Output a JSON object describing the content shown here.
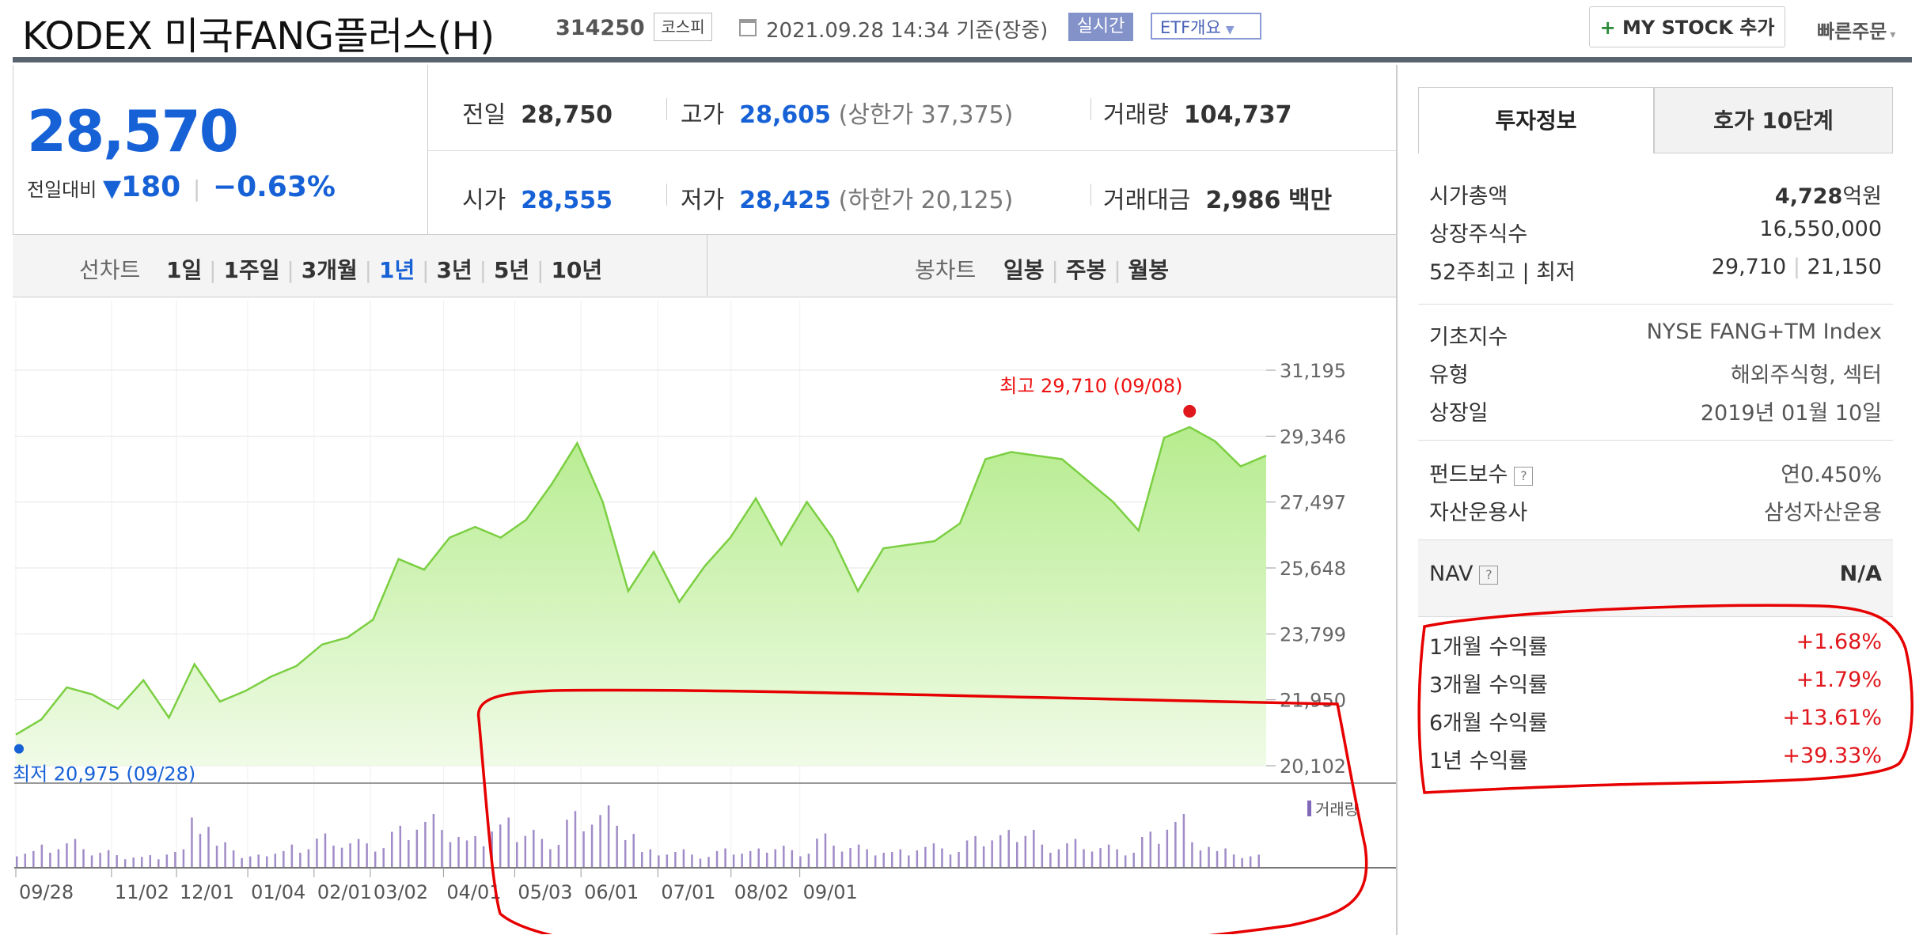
{
  "header": {
    "title": "KODEX 미국FANG플러스(H)",
    "code": "314250",
    "market": "코스피",
    "datetime": "2021.09.28 14:34 기준(장중)",
    "realtime_label": "실시간",
    "etf_label": "ETF개요",
    "mystock_plus": "+",
    "mystock_label": "MY STOCK 추가",
    "quick_order": "빠른주문"
  },
  "price": {
    "current": "28,570",
    "compare_label": "전일대비",
    "change_arrow": "▼",
    "change": "180",
    "change_pct": "−0.63%"
  },
  "stats": {
    "prev_label": "전일",
    "prev": "28,750",
    "high_label": "고가",
    "high": "28,605",
    "upper_limit": "(상한가 37,375)",
    "volume_label": "거래량",
    "volume": "104,737",
    "open_label": "시가",
    "open": "28,555",
    "low_label": "저가",
    "low": "28,425",
    "lower_limit": "(하한가 20,125)",
    "amount_label": "거래대금",
    "amount": "2,986",
    "amount_unit": "백만"
  },
  "chart_controls": {
    "line_label": "선차트",
    "periods": [
      "1일",
      "1주일",
      "3개월",
      "1년",
      "3년",
      "5년",
      "10년"
    ],
    "active_period": "1년",
    "candle_label": "봉차트",
    "candles": [
      "일봉",
      "주봉",
      "월봉"
    ]
  },
  "chart_data": {
    "type": "area",
    "x_ticks": [
      "09/28",
      "11/02",
      "12/01",
      "01/04",
      "02/01",
      "03/02",
      "04/01",
      "05/03",
      "06/01",
      "07/01",
      "08/02",
      "09/01"
    ],
    "y_ticks": [
      "31,195",
      "29,346",
      "27,497",
      "25,648",
      "23,799",
      "21,950",
      "20,102"
    ],
    "ylim": [
      20102,
      31195
    ],
    "high_annotation": "최고 29,710 (09/08)",
    "low_annotation": "최저 20,975 (09/28)",
    "volume_legend": "거래량",
    "series": [
      {
        "values": [
          20975,
          21400,
          22300,
          22100,
          21700,
          22500,
          21450,
          22950,
          21900,
          22200,
          22600,
          22900,
          23500,
          23700,
          24200,
          25900,
          25600,
          26500,
          26800,
          26500,
          27000,
          28000,
          29150,
          27500,
          25000,
          26100,
          24700,
          25700,
          26500,
          27600,
          26300,
          27500,
          26500,
          25000,
          26200,
          26300,
          26400,
          26900,
          28700,
          28900,
          28800,
          28700,
          28100,
          27500,
          26700,
          29300,
          29600,
          29200,
          28500,
          28800
        ]
      }
    ],
    "volume": [
      3,
      4,
      5,
      3,
      2,
      2,
      3,
      8,
      4,
      2,
      3,
      4,
      6,
      5,
      4,
      7,
      9,
      6,
      5,
      8,
      7,
      5,
      10,
      11,
      7,
      3,
      3,
      2,
      3,
      3,
      4,
      3,
      6,
      4,
      3,
      3,
      4,
      3,
      5,
      6,
      7,
      4,
      5,
      4,
      3,
      6,
      9,
      4,
      3,
      2
    ]
  },
  "colors": {
    "blue": "#1761d6",
    "red": "#e0171c",
    "line": "#7bcf42",
    "fill_top": "#b6ec8e",
    "fill_bottom": "#f0fbe7",
    "volume": "#a08cc8",
    "annotation": "#ee1111"
  },
  "side": {
    "tab_invest": "투자정보",
    "tab_quote": "호가 10단계",
    "market_cap_label": "시가총액",
    "market_cap": "4,728",
    "market_cap_unit": "억원",
    "shares_label": "상장주식수",
    "shares": "16,550,000",
    "range52_label": "52주최고 | 최저",
    "range52_high": "29,710",
    "range52_low": "21,150",
    "index_label": "기초지수",
    "index": "NYSE FANG+TM Index",
    "type_label": "유형",
    "type": "해외주식형, 섹터",
    "listed_label": "상장일",
    "listed": "2019년 01월 10일",
    "fee_label": "펀드보수",
    "fee_help": "?",
    "fee": "연0.450%",
    "manager_label": "자산운용사",
    "manager": "삼성자산운용",
    "nav_label": "NAV",
    "nav_help": "?",
    "nav": "N/A",
    "returns": [
      {
        "label": "1개월 수익률",
        "value": "+1.68%"
      },
      {
        "label": "3개월 수익률",
        "value": "+1.79%"
      },
      {
        "label": "6개월 수익률",
        "value": "+13.61%"
      },
      {
        "label": "1년 수익률",
        "value": "+39.33%"
      }
    ]
  }
}
